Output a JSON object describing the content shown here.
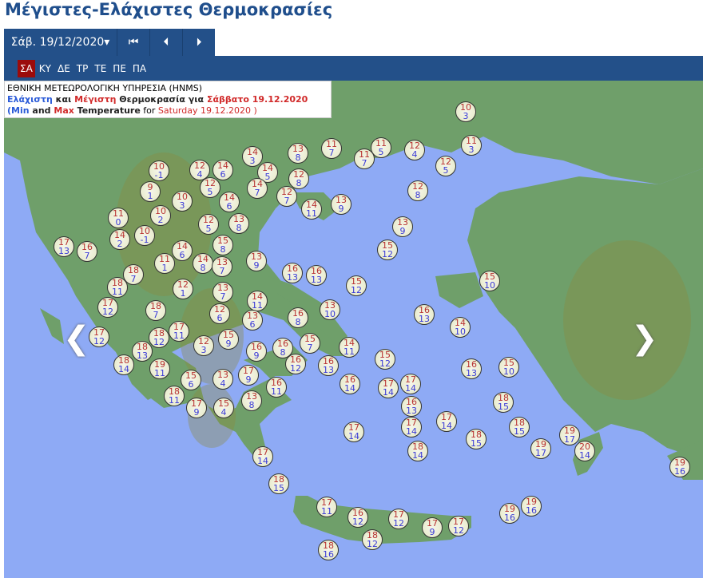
{
  "title": "Μέγιστες-Ελάχιστες Θερμοκρασίες",
  "toolbar": {
    "date": "Σάβ. 19/12/2020▾",
    "first_icon": "skip-to-first-icon",
    "prev_icon": "previous-icon",
    "next_icon": "next-icon"
  },
  "days": [
    "ΣΑ",
    "ΚΥ",
    "ΔΕ",
    "ΤΡ",
    "ΤΕ",
    "ΠΕ",
    "ΠΑ"
  ],
  "active_day": "ΣΑ",
  "legend": {
    "agency": "ΕΘΝΙΚΗ ΜΕΤΕΩΡΟΛΟΓΙΚΗ ΥΠΗΡΕΣΙΑ (HNMS)",
    "gr_min": "Ελάχιστη",
    "gr_and": " και ",
    "gr_max": "Μέγιστη",
    "gr_rest": " Θερμοκρασία για ",
    "gr_date": "Σάββατο 19.12.2020",
    "en_open": "(Min",
    "en_and": " and ",
    "en_max": "Max",
    "en_temp": " Temperature",
    "en_for": " for ",
    "en_date": "Saturday 19.12.2020 )"
  },
  "colors": {
    "max": "#b83232",
    "min": "#3a3ad6",
    "sea": "#8eaaf5",
    "land": "#6f9f6a",
    "header": "#235089",
    "active_day": "#9b0b0b"
  },
  "markers": [
    {
      "max": "10",
      "min": "3"
    },
    {
      "max": "11",
      "min": "7"
    },
    {
      "max": "11",
      "min": "5"
    },
    {
      "max": "11",
      "min": "7"
    },
    {
      "max": "12",
      "min": "4"
    },
    {
      "max": "11",
      "min": "3"
    },
    {
      "max": "12",
      "min": "5"
    },
    {
      "max": "12",
      "min": "8"
    },
    {
      "max": "13",
      "min": "8"
    },
    {
      "max": "14",
      "min": "3"
    },
    {
      "max": "14",
      "min": "5"
    },
    {
      "max": "14",
      "min": "7"
    },
    {
      "max": "12",
      "min": "8"
    },
    {
      "max": "12",
      "min": "7"
    },
    {
      "max": "14",
      "min": "11"
    },
    {
      "max": "13",
      "min": "9"
    },
    {
      "max": "13",
      "min": "9"
    },
    {
      "max": "15",
      "min": "12"
    },
    {
      "max": "12",
      "min": "4"
    },
    {
      "max": "14",
      "min": "6"
    },
    {
      "max": "12",
      "min": "5"
    },
    {
      "max": "14",
      "min": "6"
    },
    {
      "max": "10",
      "min": "3"
    },
    {
      "max": "10",
      "min": "-1"
    },
    {
      "max": "9",
      "min": "1"
    },
    {
      "max": "10",
      "min": "2"
    },
    {
      "max": "11",
      "min": "0"
    },
    {
      "max": "10",
      "min": "-1"
    },
    {
      "max": "14",
      "min": "2"
    },
    {
      "max": "17",
      "min": "13"
    },
    {
      "max": "16",
      "min": "7"
    },
    {
      "max": "12",
      "min": "5"
    },
    {
      "max": "13",
      "min": "8"
    },
    {
      "max": "15",
      "min": "8"
    },
    {
      "max": "14",
      "min": "6"
    },
    {
      "max": "14",
      "min": "8"
    },
    {
      "max": "13",
      "min": "7"
    },
    {
      "max": "11",
      "min": "1"
    },
    {
      "max": "18",
      "min": "7"
    },
    {
      "max": "18",
      "min": "11"
    },
    {
      "max": "12",
      "min": "1"
    },
    {
      "max": "13",
      "min": "7"
    },
    {
      "max": "13",
      "min": "9"
    },
    {
      "max": "14",
      "min": "11"
    },
    {
      "max": "16",
      "min": "13"
    },
    {
      "max": "16",
      "min": "13"
    },
    {
      "max": "15",
      "min": "12"
    },
    {
      "max": "13",
      "min": "10"
    },
    {
      "max": "17",
      "min": "12"
    },
    {
      "max": "18",
      "min": "7"
    },
    {
      "max": "12",
      "min": "6"
    },
    {
      "max": "13",
      "min": "6"
    },
    {
      "max": "16",
      "min": "8"
    },
    {
      "max": "17",
      "min": "12"
    },
    {
      "max": "18",
      "min": "12"
    },
    {
      "max": "17",
      "min": "11"
    },
    {
      "max": "12",
      "min": "3"
    },
    {
      "max": "15",
      "min": "9"
    },
    {
      "max": "18",
      "min": "13"
    },
    {
      "max": "18",
      "min": "14"
    },
    {
      "max": "16",
      "min": "9"
    },
    {
      "max": "16",
      "min": "8"
    },
    {
      "max": "15",
      "min": "7"
    },
    {
      "max": "16",
      "min": "12"
    },
    {
      "max": "16",
      "min": "13"
    },
    {
      "max": "14",
      "min": "11"
    },
    {
      "max": "15",
      "min": "12"
    },
    {
      "max": "16",
      "min": "13"
    },
    {
      "max": "14",
      "min": "10"
    },
    {
      "max": "15",
      "min": "10"
    },
    {
      "max": "16",
      "min": "13"
    },
    {
      "max": "15",
      "min": "10"
    },
    {
      "max": "19",
      "min": "11"
    },
    {
      "max": "15",
      "min": "6"
    },
    {
      "max": "13",
      "min": "4"
    },
    {
      "max": "17",
      "min": "9"
    },
    {
      "max": "16",
      "min": "11"
    },
    {
      "max": "18",
      "min": "11"
    },
    {
      "max": "17",
      "min": "9"
    },
    {
      "max": "15",
      "min": "4"
    },
    {
      "max": "13",
      "min": "8"
    },
    {
      "max": "16",
      "min": "14"
    },
    {
      "max": "17",
      "min": "14"
    },
    {
      "max": "17",
      "min": "14"
    },
    {
      "max": "16",
      "min": "13"
    },
    {
      "max": "17",
      "min": "14"
    },
    {
      "max": "17",
      "min": "14"
    },
    {
      "max": "17",
      "min": "14"
    },
    {
      "max": "18",
      "min": "14"
    },
    {
      "max": "18",
      "min": "15"
    },
    {
      "max": "18",
      "min": "15"
    },
    {
      "max": "18",
      "min": "15"
    },
    {
      "max": "19",
      "min": "17"
    },
    {
      "max": "19",
      "min": "17"
    },
    {
      "max": "20",
      "min": "14"
    },
    {
      "max": "19",
      "min": "16"
    },
    {
      "max": "17",
      "min": "14"
    },
    {
      "max": "18",
      "min": "15"
    },
    {
      "max": "17",
      "min": "11"
    },
    {
      "max": "16",
      "min": "12"
    },
    {
      "max": "17",
      "min": "12"
    },
    {
      "max": "17",
      "min": "9"
    },
    {
      "max": "17",
      "min": "12"
    },
    {
      "max": "18",
      "min": "12"
    },
    {
      "max": "18",
      "min": "16"
    },
    {
      "max": "19",
      "min": "16"
    },
    {
      "max": "19",
      "min": "16"
    }
  ]
}
